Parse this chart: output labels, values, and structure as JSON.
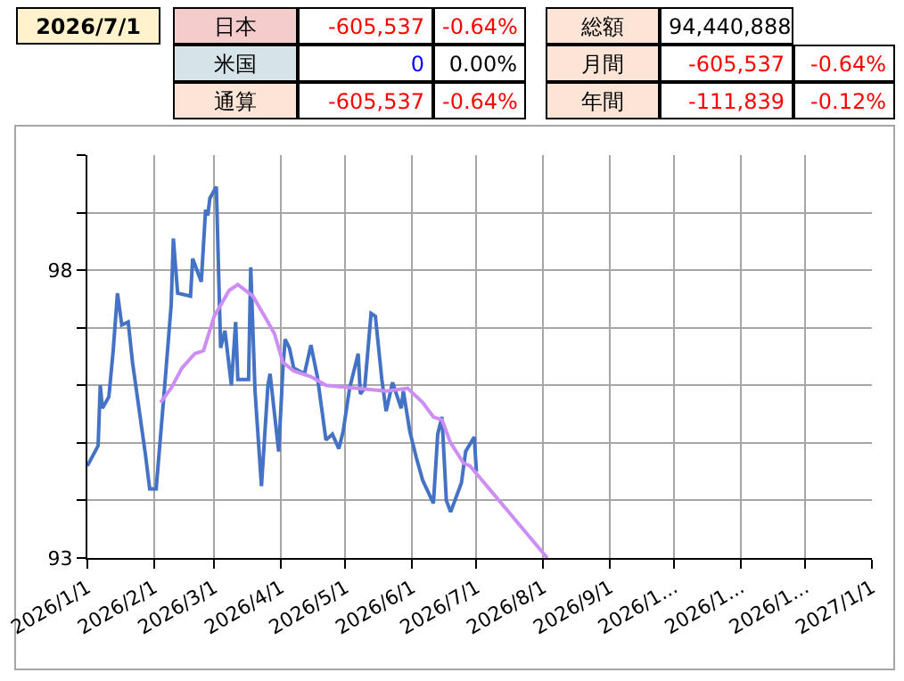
{
  "chart_data": [
    {
      "type": "other",
      "annotations": [
        "2026/7/1",
        "日本",
        "-605,537",
        "-0.64%",
        "米国",
        "0",
        "0.00%",
        "通算",
        "-605,537",
        "-0.64%",
        "総額",
        "94,440,888",
        "月間",
        "-605,537",
        "-0.64%",
        "年間",
        "-111,839",
        "-0.12%"
      ]
    },
    {
      "type": "line",
      "x": [
        "2026-01-01",
        "2026-01-06",
        "2026-01-07",
        "2026-01-08",
        "2026-01-11",
        "2026-01-13",
        "2026-01-15",
        "2026-01-17",
        "2026-01-20",
        "2026-01-22",
        "2026-01-28",
        "2026-01-30",
        "2026-02-02",
        "2026-02-06",
        "2026-02-09",
        "2026-02-10",
        "2026-02-12",
        "2026-02-18",
        "2026-02-19",
        "2026-02-23",
        "2026-02-25",
        "2026-02-26",
        "2026-02-27",
        "2026-03-02",
        "2026-03-04",
        "2026-03-06",
        "2026-03-09",
        "2026-03-11",
        "2026-03-12",
        "2026-03-17",
        "2026-03-18",
        "2026-03-20",
        "2026-03-23",
        "2026-03-26",
        "2026-03-27",
        "2026-03-31",
        "2026-04-02",
        "2026-04-03",
        "2026-04-05",
        "2026-04-07",
        "2026-04-12",
        "2026-04-15",
        "2026-04-18",
        "2026-04-22",
        "2026-04-25",
        "2026-04-28",
        "2026-04-30",
        "2026-05-03",
        "2026-05-07",
        "2026-05-08",
        "2026-05-10",
        "2026-05-13",
        "2026-05-15",
        "2026-05-18",
        "2026-05-20",
        "2026-05-23",
        "2026-05-27",
        "2026-05-28",
        "2026-05-31",
        "2026-06-03",
        "2026-06-06",
        "2026-06-11",
        "2026-06-13",
        "2026-06-15",
        "2026-06-17",
        "2026-06-19",
        "2026-06-24",
        "2026-06-26",
        "2026-06-30",
        "2026-07-01"
      ],
      "series": [
        {
          "color": "#4472c4",
          "values": [
            94.6,
            94.95,
            96.0,
            95.6,
            95.8,
            96.6,
            97.6,
            97.05,
            97.1,
            96.4,
            94.8,
            94.2,
            94.2,
            96.0,
            97.4,
            98.55,
            97.6,
            97.55,
            98.2,
            97.8,
            99.05,
            98.95,
            99.25,
            99.45,
            96.65,
            96.95,
            96.0,
            97.1,
            96.1,
            96.1,
            98.05,
            95.9,
            94.25,
            96.0,
            96.2,
            94.85,
            96.3,
            96.8,
            96.65,
            96.3,
            96.2,
            96.7,
            96.15,
            95.05,
            95.15,
            94.9,
            95.2,
            95.95,
            96.55,
            95.85,
            95.95,
            97.25,
            97.2,
            96.1,
            95.55,
            96.05,
            95.6,
            95.9,
            95.2,
            94.75,
            94.35,
            93.95,
            95.15,
            95.45,
            94.0,
            93.8,
            94.3,
            94.85,
            95.1,
            94.5
          ]
        },
        {
          "color": "#cc8ef5",
          "x": [
            "2026-02-04",
            "2026-02-09",
            "2026-02-14",
            "2026-02-20",
            "2026-02-24",
            "2026-03-01",
            "2026-03-08",
            "2026-03-12",
            "2026-03-19",
            "2026-03-26",
            "2026-03-29",
            "2026-04-02",
            "2026-04-07",
            "2026-04-15",
            "2026-04-22",
            "2026-05-06",
            "2026-05-20",
            "2026-05-30",
            "2026-06-06",
            "2026-06-11",
            "2026-06-15",
            "2026-06-19",
            "2026-06-25",
            "2026-06-28",
            "2026-08-03"
          ],
          "values": [
            95.7,
            95.95,
            96.3,
            96.55,
            96.6,
            97.2,
            97.65,
            97.75,
            97.55,
            97.1,
            96.9,
            96.4,
            96.25,
            96.15,
            96.0,
            95.95,
            95.9,
            95.95,
            95.7,
            95.45,
            95.4,
            95.0,
            94.65,
            94.6,
            93.0
          ]
        }
      ],
      "xlim": [
        "2026-01-01",
        "2027-01-01"
      ],
      "xticks": [
        {
          "value": "2026-01-01",
          "label": "2026/1/1"
        },
        {
          "value": "2026-02-01",
          "label": "2026/2/1"
        },
        {
          "value": "2026-03-01",
          "label": "2026/3/1"
        },
        {
          "value": "2026-04-01",
          "label": "2026/4/1"
        },
        {
          "value": "2026-05-01",
          "label": "2026/5/1"
        },
        {
          "value": "2026-06-01",
          "label": "2026/6/1"
        },
        {
          "value": "2026-07-01",
          "label": "2026/7/1"
        },
        {
          "value": "2026-08-01",
          "label": "2026/8/1"
        },
        {
          "value": "2026-09-01",
          "label": "2026/9/1"
        },
        {
          "value": "2026-10-01",
          "label": "2026/1..."
        },
        {
          "value": "2026-11-01",
          "label": "2026/1..."
        },
        {
          "value": "2026-12-01",
          "label": "2026/1..."
        },
        {
          "value": "2027-01-01",
          "label": "2027/1/1"
        }
      ],
      "ylim": [
        93,
        100
      ],
      "yticks": [
        93,
        {
          "value": 94,
          "label": null
        },
        {
          "value": 95,
          "label": null
        },
        {
          "value": 96,
          "label": null
        },
        {
          "value": 97,
          "label": null
        },
        98,
        {
          "value": 99,
          "label": null
        },
        {
          "value": 100,
          "label": null
        }
      ],
      "grid": true,
      "marker": "none",
      "line_style": "solid"
    }
  ]
}
